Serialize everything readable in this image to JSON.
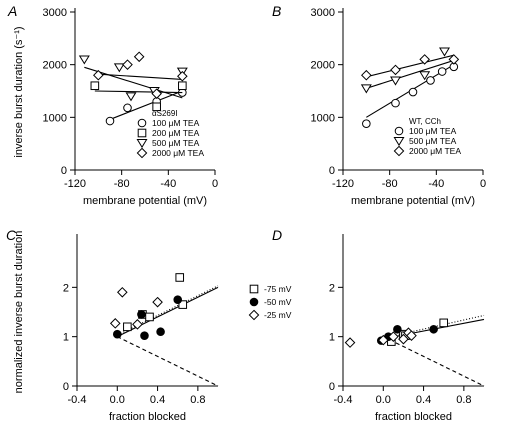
{
  "figure": {
    "ylabel_shared_top": "inverse burst duration (s⁻¹)",
    "ylabel_shared_bottom": "normalized inverse burst duration"
  },
  "chart_data": [
    {
      "panel": "A",
      "type": "scatter",
      "xlabel": "membrane potential (mV)",
      "ylabel": "inverse burst duration (s⁻¹)",
      "xlim": [
        -120,
        0
      ],
      "ylim": [
        0,
        3000
      ],
      "xticks": [
        -120,
        -80,
        -40,
        0
      ],
      "yticks": [
        0,
        1000,
        2000,
        3000
      ],
      "xtick_labels": [
        "-120",
        "-80",
        "-40",
        "0"
      ],
      "ytick_labels": [
        "0",
        "1000",
        "2000",
        "3000"
      ],
      "legend_title": "αS269I",
      "legend_position": "lower-right",
      "series": [
        {
          "name": "100 μM TEA",
          "marker": "circle",
          "x": [
            -90,
            -75,
            -50,
            -28
          ],
          "y": [
            930,
            1180,
            1300,
            1470
          ],
          "fit": [
            [
              -90,
              960
            ],
            [
              -28,
              1500
            ]
          ]
        },
        {
          "name": "200 μM TEA",
          "marker": "square",
          "x": [
            -103,
            -50,
            -28
          ],
          "y": [
            1600,
            1200,
            1600
          ],
          "fit": [
            [
              -103,
              1500
            ],
            [
              -28,
              1470
            ]
          ]
        },
        {
          "name": "500 μM TEA",
          "marker": "triangle-down",
          "x": [
            -112,
            -82,
            -72,
            -52,
            -28
          ],
          "y": [
            2100,
            1950,
            1400,
            1500,
            1870
          ],
          "fit": [
            [
              -112,
              1950
            ],
            [
              -28,
              1370
            ]
          ]
        },
        {
          "name": "2000 μM TEA",
          "marker": "diamond",
          "x": [
            -100,
            -75,
            -65,
            -50,
            -28
          ],
          "y": [
            1800,
            2000,
            2150,
            1450,
            1780
          ],
          "fit": [
            [
              -100,
              1820
            ],
            [
              -28,
              1720
            ]
          ]
        }
      ]
    },
    {
      "panel": "B",
      "type": "scatter",
      "xlabel": "membrane potential (mV)",
      "ylabel": "",
      "xlim": [
        -120,
        0
      ],
      "ylim": [
        0,
        3000
      ],
      "xticks": [
        -120,
        -80,
        -40,
        0
      ],
      "yticks": [
        0,
        1000,
        2000,
        3000
      ],
      "xtick_labels": [
        "-120",
        "-80",
        "-40",
        "0"
      ],
      "ytick_labels": [
        "0",
        "1000",
        "2000",
        "3000"
      ],
      "legend_title": "WT, CCh",
      "legend_position": "lower-right",
      "series": [
        {
          "name": "100 μM TEA",
          "marker": "circle",
          "x": [
            -100,
            -75,
            -60,
            -45,
            -35,
            -25
          ],
          "y": [
            880,
            1270,
            1480,
            1700,
            1870,
            1960
          ],
          "fit": [
            [
              -100,
              1000
            ],
            [
              -25,
              2000
            ]
          ]
        },
        {
          "name": "500 μM TEA",
          "marker": "triangle-down",
          "x": [
            -100,
            -75,
            -50,
            -33
          ],
          "y": [
            1550,
            1700,
            1800,
            2250
          ],
          "fit": [
            [
              -100,
              1550
            ],
            [
              -25,
              2080
            ]
          ]
        },
        {
          "name": "2000 μM TEA",
          "marker": "diamond",
          "x": [
            -100,
            -75,
            -50,
            -25
          ],
          "y": [
            1800,
            1900,
            2100,
            2100
          ],
          "fit": [
            [
              -100,
              1770
            ],
            [
              -25,
              2180
            ]
          ]
        }
      ]
    },
    {
      "panel": "C",
      "type": "scatter",
      "xlabel": "fraction blocked",
      "ylabel": "normalized inverse burst duration",
      "xlim": [
        -0.4,
        1.0
      ],
      "ylim": [
        0,
        3
      ],
      "xticks": [
        -0.4,
        0.0,
        0.4,
        0.8
      ],
      "yticks": [
        0,
        1,
        2
      ],
      "xtick_labels": [
        "-0.4",
        "0.0",
        "0.4",
        "0.8"
      ],
      "ytick_labels": [
        "0",
        "1",
        "2"
      ],
      "legend_position": "right",
      "series": [
        {
          "name": "-75 mV",
          "marker": "square",
          "x": [
            0.1,
            0.25,
            0.32,
            0.62,
            0.65
          ],
          "y": [
            1.2,
            1.45,
            1.4,
            2.2,
            1.65
          ]
        },
        {
          "name": "-50 mV",
          "marker": "circle",
          "x": [
            0.0,
            0.24,
            0.27,
            0.43,
            0.6
          ],
          "y": [
            1.05,
            1.45,
            1.02,
            1.1,
            1.75
          ]
        },
        {
          "name": "-25 mV",
          "marker": "diamond",
          "x": [
            -0.02,
            0.05,
            0.2,
            0.4
          ],
          "y": [
            1.27,
            1.9,
            1.25,
            1.7
          ]
        }
      ],
      "lines": [
        {
          "style": "solid",
          "points": [
            [
              -0.02,
              0.98
            ],
            [
              1.0,
              2.0
            ]
          ]
        },
        {
          "style": "dotted",
          "points": [
            [
              -0.02,
              0.98
            ],
            [
              1.0,
              2.0
            ]
          ]
        },
        {
          "style": "dashed",
          "points": [
            [
              0.0,
              1.0
            ],
            [
              1.0,
              0.0
            ]
          ]
        }
      ]
    },
    {
      "panel": "D",
      "type": "scatter",
      "xlabel": "fraction blocked",
      "ylabel": "",
      "xlim": [
        -0.4,
        1.0
      ],
      "ylim": [
        0,
        3
      ],
      "xticks": [
        -0.4,
        0.0,
        0.4,
        0.8
      ],
      "yticks": [
        0,
        1,
        2
      ],
      "xtick_labels": [
        "-0.4",
        "0.0",
        "0.4",
        "0.8"
      ],
      "ytick_labels": [
        "0",
        "1",
        "2"
      ],
      "series": [
        {
          "name": "-75 mV",
          "marker": "square",
          "x": [
            0.08,
            0.2,
            0.22,
            0.6
          ],
          "y": [
            0.9,
            1.05,
            1.02,
            1.28
          ]
        },
        {
          "name": "-50 mV",
          "marker": "circle",
          "x": [
            -0.02,
            0.05,
            0.14,
            0.5
          ],
          "y": [
            0.92,
            1.0,
            1.15,
            1.15
          ]
        },
        {
          "name": "-25 mV",
          "marker": "diamond",
          "x": [
            -0.33,
            0.0,
            0.1,
            0.2,
            0.25,
            0.28
          ],
          "y": [
            0.88,
            0.93,
            1.0,
            0.95,
            1.08,
            1.02
          ]
        }
      ],
      "lines": [
        {
          "style": "solid",
          "points": [
            [
              -0.02,
              0.95
            ],
            [
              1.0,
              1.35
            ]
          ]
        },
        {
          "style": "dotted",
          "points": [
            [
              -0.02,
              0.93
            ],
            [
              1.0,
              1.4
            ]
          ]
        },
        {
          "style": "dashed",
          "points": [
            [
              0.0,
              1.0
            ],
            [
              1.0,
              0.0
            ]
          ]
        }
      ]
    }
  ]
}
